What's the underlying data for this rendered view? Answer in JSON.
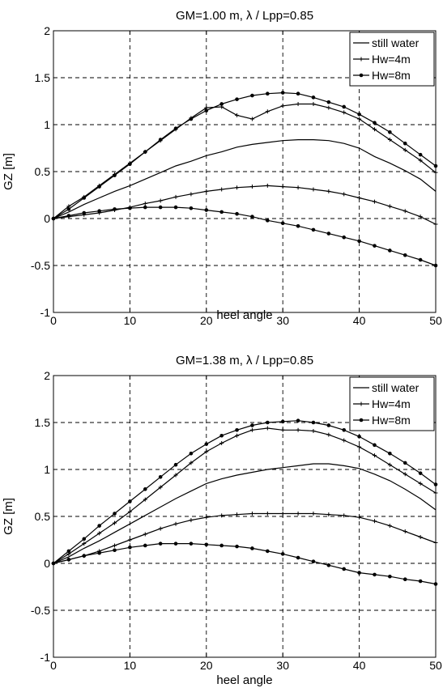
{
  "chart_data": [
    {
      "type": "line",
      "title": "GM=1.00 m, λ / Lpp=0.85",
      "xlabel": "heel angle",
      "ylabel": "GZ [m]",
      "xlim": [
        0,
        50
      ],
      "ylim": [
        -1,
        2
      ],
      "x_ticks": [
        0,
        10,
        20,
        30,
        40,
        50
      ],
      "y_ticks": [
        -1,
        -0.5,
        0,
        0.5,
        1,
        1.5,
        2
      ],
      "grid": true,
      "legend_position": "top-right",
      "legend": [
        "still water",
        "Hw=4m",
        "Hw=8m"
      ],
      "x": [
        0,
        2,
        4,
        6,
        8,
        10,
        12,
        14,
        16,
        18,
        20,
        22,
        24,
        26,
        28,
        30,
        32,
        34,
        36,
        38,
        40,
        42,
        44,
        46,
        48,
        50
      ],
      "series": [
        {
          "legend_index": 0,
          "marker": "none",
          "values": [
            0,
            0.07,
            0.15,
            0.22,
            0.29,
            0.35,
            0.42,
            0.49,
            0.56,
            0.61,
            0.67,
            0.71,
            0.76,
            0.79,
            0.81,
            0.83,
            0.84,
            0.84,
            0.83,
            0.8,
            0.75,
            0.66,
            0.59,
            0.51,
            0.42,
            0.29
          ]
        },
        {
          "legend_index": 1,
          "marker": "plus",
          "values": [
            0,
            0.02,
            0.04,
            0.06,
            0.09,
            0.12,
            0.16,
            0.19,
            0.23,
            0.26,
            0.29,
            0.31,
            0.33,
            0.34,
            0.35,
            0.34,
            0.33,
            0.31,
            0.29,
            0.26,
            0.22,
            0.18,
            0.13,
            0.08,
            0.02,
            -0.06
          ]
        },
        {
          "legend_index": 1,
          "marker": "plus",
          "values": [
            0,
            0.13,
            0.23,
            0.35,
            0.47,
            0.59,
            0.71,
            0.83,
            0.95,
            1.07,
            1.18,
            1.19,
            1.1,
            1.06,
            1.14,
            1.2,
            1.22,
            1.22,
            1.18,
            1.13,
            1.06,
            0.95,
            0.84,
            0.73,
            0.62,
            0.49
          ]
        },
        {
          "legend_index": 2,
          "marker": "dot",
          "values": [
            0,
            0.03,
            0.06,
            0.08,
            0.1,
            0.11,
            0.12,
            0.12,
            0.12,
            0.11,
            0.09,
            0.07,
            0.05,
            0.02,
            -0.02,
            -0.05,
            -0.08,
            -0.12,
            -0.16,
            -0.2,
            -0.24,
            -0.29,
            -0.34,
            -0.39,
            -0.44,
            -0.5
          ]
        },
        {
          "legend_index": 2,
          "marker": "dot",
          "values": [
            0,
            0.1,
            0.22,
            0.34,
            0.46,
            0.58,
            0.71,
            0.84,
            0.96,
            1.06,
            1.15,
            1.22,
            1.27,
            1.31,
            1.33,
            1.34,
            1.33,
            1.29,
            1.24,
            1.19,
            1.11,
            1.02,
            0.92,
            0.8,
            0.68,
            0.56
          ]
        }
      ]
    },
    {
      "type": "line",
      "title": "GM=1.38 m, λ / Lpp=0.85",
      "xlabel": "heel angle",
      "ylabel": "GZ [m]",
      "xlim": [
        0,
        50
      ],
      "ylim": [
        -1,
        2
      ],
      "x_ticks": [
        0,
        10,
        20,
        30,
        40,
        50
      ],
      "y_ticks": [
        -1,
        -0.5,
        0,
        0.5,
        1,
        1.5,
        2
      ],
      "grid": true,
      "legend_position": "top-right",
      "legend": [
        "still water",
        "Hw=4m",
        "Hw=8m"
      ],
      "x": [
        0,
        2,
        4,
        6,
        8,
        10,
        12,
        14,
        16,
        18,
        20,
        22,
        24,
        26,
        28,
        30,
        32,
        34,
        36,
        38,
        40,
        42,
        44,
        46,
        48,
        50
      ],
      "series": [
        {
          "legend_index": 0,
          "marker": "none",
          "values": [
            0,
            0.07,
            0.16,
            0.24,
            0.33,
            0.42,
            0.51,
            0.6,
            0.69,
            0.77,
            0.85,
            0.9,
            0.94,
            0.97,
            1.0,
            1.02,
            1.04,
            1.06,
            1.06,
            1.04,
            1.01,
            0.95,
            0.88,
            0.79,
            0.69,
            0.57
          ]
        },
        {
          "legend_index": 1,
          "marker": "plus",
          "values": [
            0,
            0.04,
            0.08,
            0.13,
            0.19,
            0.25,
            0.31,
            0.37,
            0.42,
            0.46,
            0.49,
            0.51,
            0.52,
            0.53,
            0.53,
            0.53,
            0.53,
            0.53,
            0.52,
            0.51,
            0.49,
            0.45,
            0.4,
            0.34,
            0.28,
            0.22
          ]
        },
        {
          "legend_index": 1,
          "marker": "plus",
          "values": [
            0,
            0.1,
            0.21,
            0.32,
            0.43,
            0.55,
            0.68,
            0.81,
            0.94,
            1.07,
            1.19,
            1.28,
            1.36,
            1.42,
            1.44,
            1.42,
            1.42,
            1.41,
            1.37,
            1.31,
            1.24,
            1.15,
            1.05,
            0.95,
            0.85,
            0.75
          ]
        },
        {
          "legend_index": 2,
          "marker": "dot",
          "values": [
            0,
            0.04,
            0.08,
            0.11,
            0.14,
            0.17,
            0.19,
            0.21,
            0.21,
            0.21,
            0.2,
            0.19,
            0.18,
            0.16,
            0.13,
            0.1,
            0.06,
            0.02,
            -0.02,
            -0.06,
            -0.1,
            -0.12,
            -0.14,
            -0.17,
            -0.19,
            -0.22
          ]
        },
        {
          "legend_index": 2,
          "marker": "dot",
          "values": [
            0,
            0.13,
            0.26,
            0.4,
            0.53,
            0.66,
            0.79,
            0.92,
            1.05,
            1.17,
            1.27,
            1.36,
            1.42,
            1.47,
            1.5,
            1.51,
            1.52,
            1.5,
            1.47,
            1.42,
            1.35,
            1.26,
            1.17,
            1.07,
            0.96,
            0.84
          ]
        }
      ]
    }
  ]
}
